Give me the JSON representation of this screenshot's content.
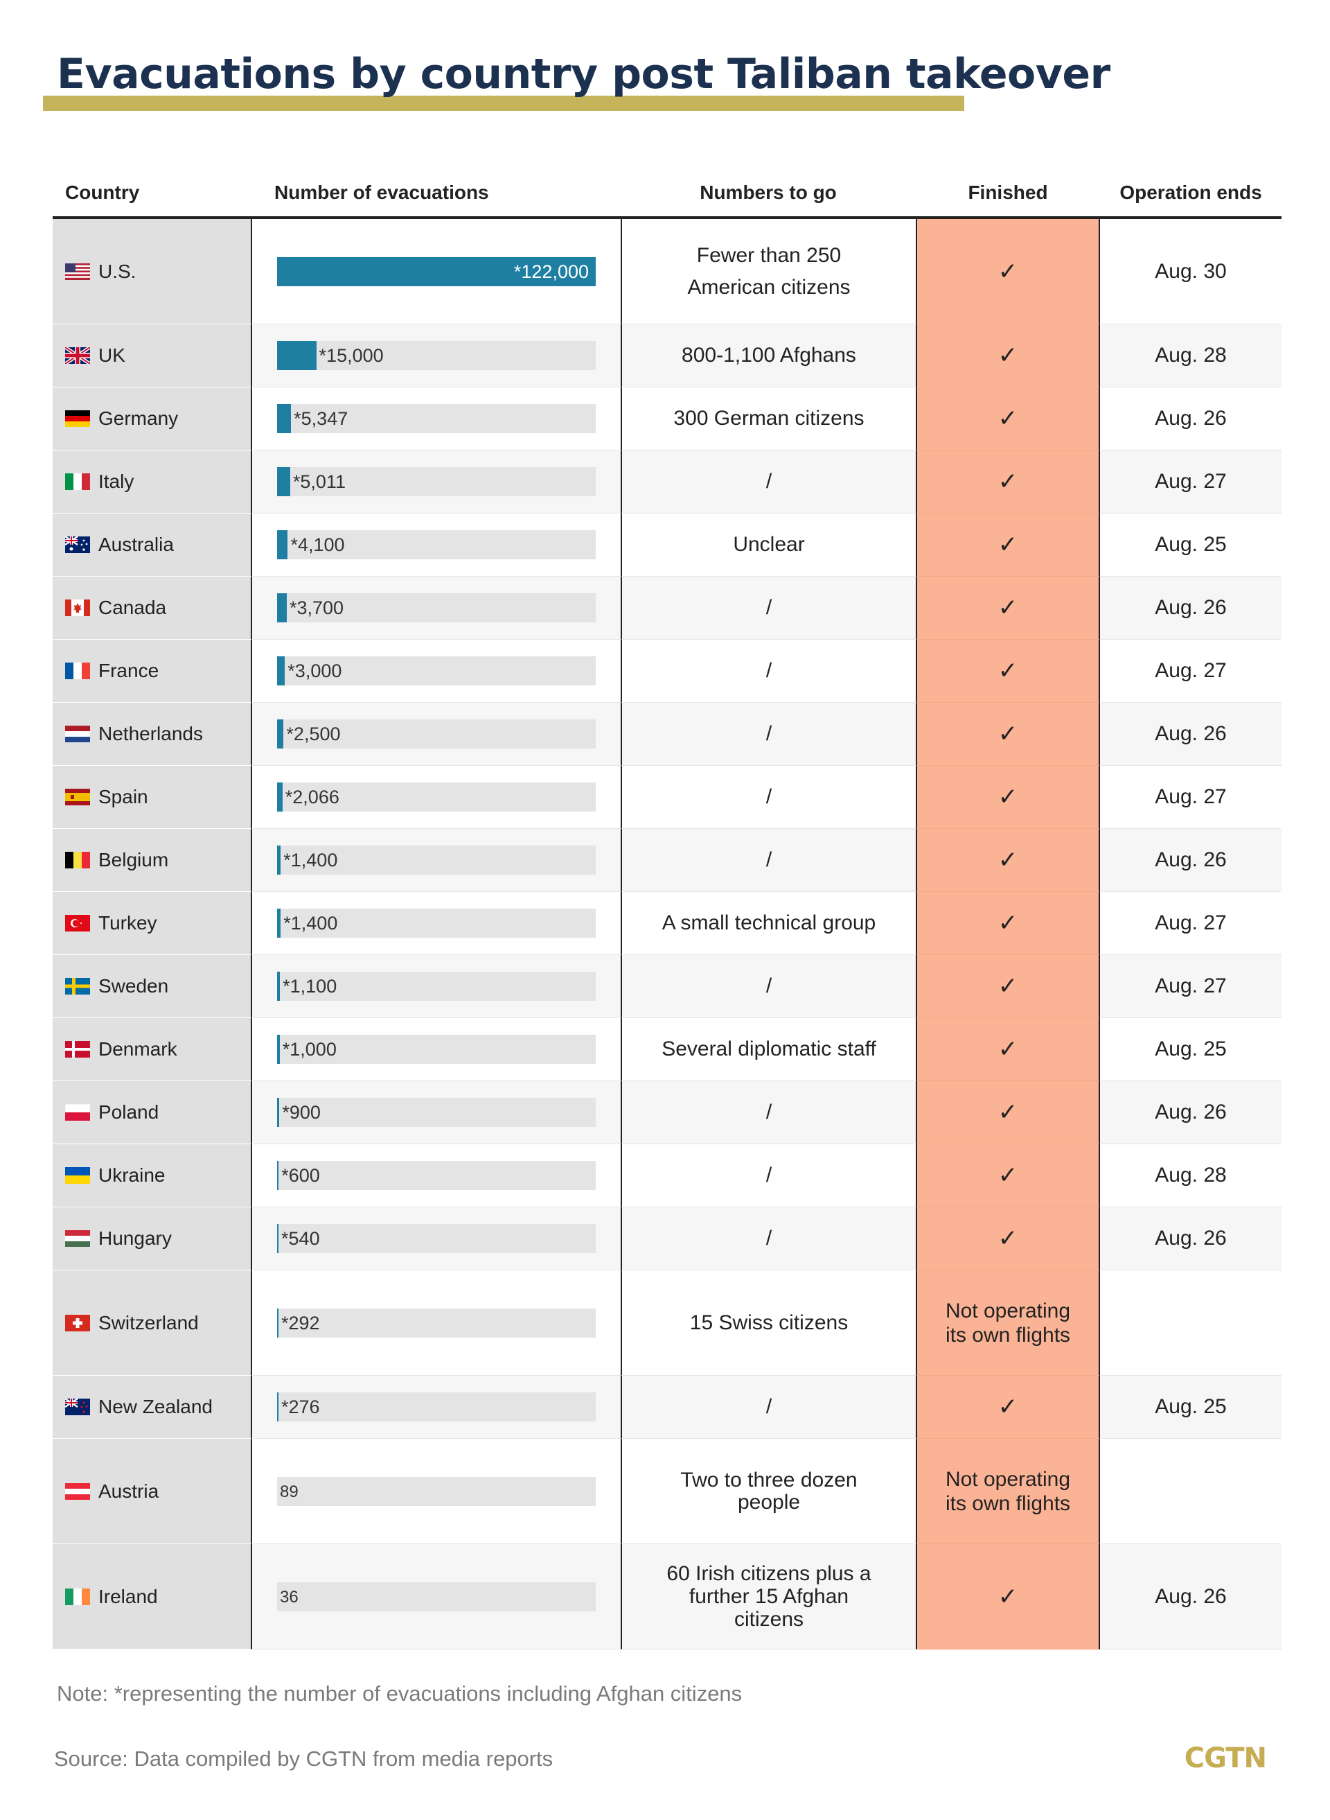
{
  "title": "Evacuations by country post Taliban takeover",
  "headers": {
    "country": "Country",
    "evacuations": "Number of evacuations",
    "to_go": "Numbers to go",
    "finished": "Finished",
    "ends": "Operation ends"
  },
  "colors": {
    "bar": "#1f7fa3",
    "bar_track": "#e4e4e4",
    "finished_column": "#fbb396",
    "country_column": "#e0e0e0",
    "title_underline": "#c6b45c",
    "title_text": "#1c3050",
    "logo": "#c6ac52"
  },
  "chart_data": {
    "type": "table",
    "bar_max": 122000,
    "rows": [
      {
        "country": "U.S.",
        "flag": "us-flag-icon",
        "evacuations": 122000,
        "evac_label": "*122,000",
        "to_go": "Fewer than 250 American citizens",
        "finished": "✓",
        "ends": "Aug. 30"
      },
      {
        "country": "UK",
        "flag": "uk-flag-icon",
        "evacuations": 15000,
        "evac_label": "*15,000",
        "to_go": "800-1,100 Afghans",
        "finished": "✓",
        "ends": "Aug. 28"
      },
      {
        "country": "Germany",
        "flag": "germany-flag-icon",
        "evacuations": 5347,
        "evac_label": "*5,347",
        "to_go": "300 German citizens",
        "finished": "✓",
        "ends": "Aug. 26"
      },
      {
        "country": "Italy",
        "flag": "italy-flag-icon",
        "evacuations": 5011,
        "evac_label": "*5,011",
        "to_go": "/",
        "finished": "✓",
        "ends": "Aug. 27"
      },
      {
        "country": "Australia",
        "flag": "australia-flag-icon",
        "evacuations": 4100,
        "evac_label": "*4,100",
        "to_go": "Unclear",
        "finished": "✓",
        "ends": "Aug. 25"
      },
      {
        "country": "Canada",
        "flag": "canada-flag-icon",
        "evacuations": 3700,
        "evac_label": "*3,700",
        "to_go": "/",
        "finished": "✓",
        "ends": "Aug. 26"
      },
      {
        "country": "France",
        "flag": "france-flag-icon",
        "evacuations": 3000,
        "evac_label": "*3,000",
        "to_go": "/",
        "finished": "✓",
        "ends": "Aug. 27"
      },
      {
        "country": "Netherlands",
        "flag": "netherlands-flag-icon",
        "evacuations": 2500,
        "evac_label": "*2,500",
        "to_go": "/",
        "finished": "✓",
        "ends": "Aug. 26"
      },
      {
        "country": "Spain",
        "flag": "spain-flag-icon",
        "evacuations": 2066,
        "evac_label": "*2,066",
        "to_go": "/",
        "finished": "✓",
        "ends": "Aug. 27"
      },
      {
        "country": "Belgium",
        "flag": "belgium-flag-icon",
        "evacuations": 1400,
        "evac_label": "*1,400",
        "to_go": "/",
        "finished": "✓",
        "ends": "Aug. 26"
      },
      {
        "country": "Turkey",
        "flag": "turkey-flag-icon",
        "evacuations": 1400,
        "evac_label": "*1,400",
        "to_go": "A small technical group",
        "finished": "✓",
        "ends": "Aug. 27"
      },
      {
        "country": "Sweden",
        "flag": "sweden-flag-icon",
        "evacuations": 1100,
        "evac_label": "*1,100",
        "to_go": "/",
        "finished": "✓",
        "ends": "Aug. 27"
      },
      {
        "country": "Denmark",
        "flag": "denmark-flag-icon",
        "evacuations": 1000,
        "evac_label": "*1,000",
        "to_go": "Several diplomatic staff",
        "finished": "✓",
        "ends": "Aug. 25"
      },
      {
        "country": "Poland",
        "flag": "poland-flag-icon",
        "evacuations": 900,
        "evac_label": "*900",
        "to_go": "/",
        "finished": "✓",
        "ends": "Aug. 26"
      },
      {
        "country": "Ukraine",
        "flag": "ukraine-flag-icon",
        "evacuations": 600,
        "evac_label": "*600",
        "to_go": "/",
        "finished": "✓",
        "ends": "Aug. 28"
      },
      {
        "country": "Hungary",
        "flag": "hungary-flag-icon",
        "evacuations": 540,
        "evac_label": "*540",
        "to_go": "/",
        "finished": "✓",
        "ends": "Aug. 26"
      },
      {
        "country": "Switzerland",
        "flag": "switzerland-flag-icon",
        "evacuations": 292,
        "evac_label": "*292",
        "to_go": "15 Swiss citizens",
        "finished": "Not operating its own flights",
        "ends": ""
      },
      {
        "country": "New Zealand",
        "flag": "new-zealand-flag-icon",
        "evacuations": 276,
        "evac_label": "*276",
        "to_go": "/",
        "finished": "✓",
        "ends": "Aug. 25"
      },
      {
        "country": "Austria",
        "flag": "austria-flag-icon",
        "evacuations": 89,
        "evac_label": "89",
        "to_go": "Two to three dozen people",
        "finished": "Not operating its own flights",
        "ends": ""
      },
      {
        "country": "Ireland",
        "flag": "ireland-flag-icon",
        "evacuations": 36,
        "evac_label": "36",
        "to_go": "60 Irish citizens plus a further 15 Afghan citizens",
        "finished": "✓",
        "ends": "Aug. 26"
      }
    ]
  },
  "note": "Note:  *representing the number of evacuations including Afghan citizens",
  "source": "Source: Data compiled by CGTN from media reports",
  "logo": "CGTN"
}
